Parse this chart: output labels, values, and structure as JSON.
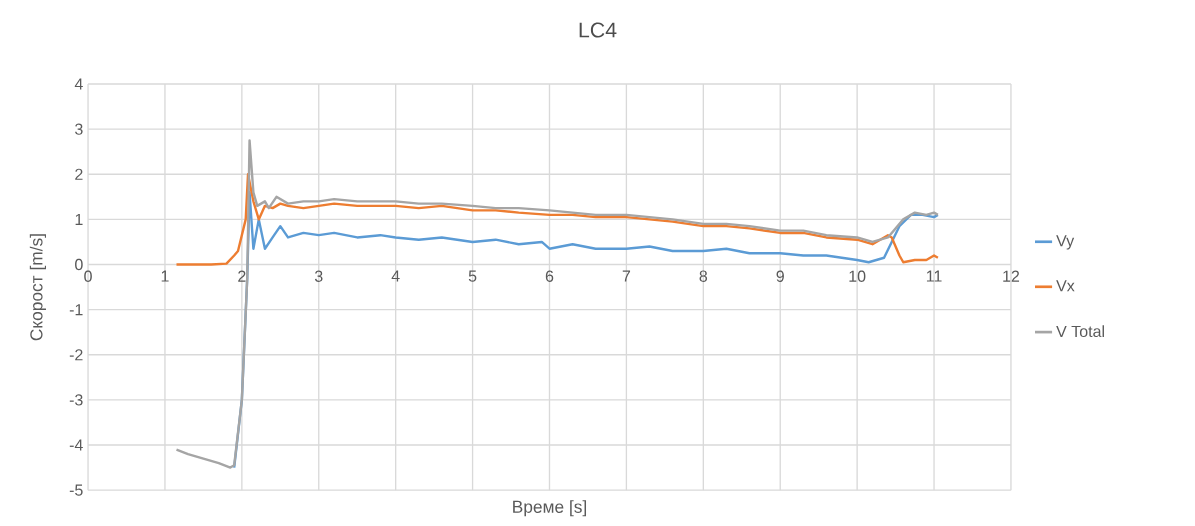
{
  "chart_data": {
    "type": "line",
    "title": "LC4",
    "xlabel": "Време [s]",
    "ylabel": "Скорост [m/s]",
    "xlim": [
      0,
      12
    ],
    "ylim": [
      -5,
      4
    ],
    "xticks": [
      0,
      1,
      2,
      3,
      4,
      5,
      6,
      7,
      8,
      9,
      10,
      11,
      12
    ],
    "yticks": [
      -5,
      -4,
      -3,
      -2,
      -1,
      0,
      1,
      2,
      3,
      4
    ],
    "grid": true,
    "legend": "right",
    "line_style": "solid",
    "marker": "none",
    "series": [
      {
        "name": "Vy",
        "color": "#5b9bd5",
        "x": [
          1.9,
          2.0,
          2.07,
          2.1,
          2.15,
          2.22,
          2.3,
          2.4,
          2.5,
          2.6,
          2.8,
          3.0,
          3.2,
          3.5,
          3.8,
          4.0,
          4.3,
          4.6,
          5.0,
          5.3,
          5.6,
          5.9,
          6.0,
          6.3,
          6.6,
          7.0,
          7.3,
          7.6,
          8.0,
          8.3,
          8.6,
          9.0,
          9.3,
          9.6,
          10.0,
          10.15,
          10.35,
          10.45,
          10.55,
          10.7,
          10.85,
          11.0,
          11.05
        ],
        "values": [
          -4.5,
          -3.0,
          -0.3,
          1.6,
          0.35,
          1.0,
          0.35,
          0.6,
          0.85,
          0.6,
          0.7,
          0.65,
          0.7,
          0.6,
          0.65,
          0.6,
          0.55,
          0.6,
          0.5,
          0.55,
          0.45,
          0.5,
          0.35,
          0.45,
          0.35,
          0.35,
          0.4,
          0.3,
          0.3,
          0.35,
          0.25,
          0.25,
          0.2,
          0.2,
          0.1,
          0.05,
          0.15,
          0.5,
          0.85,
          1.1,
          1.1,
          1.05,
          1.1
        ]
      },
      {
        "name": "Vx",
        "color": "#ed7d31",
        "x": [
          1.15,
          1.4,
          1.6,
          1.8,
          1.9,
          1.95,
          2.05,
          2.08,
          2.15,
          2.22,
          2.3,
          2.4,
          2.5,
          2.6,
          2.8,
          3.0,
          3.2,
          3.5,
          3.8,
          4.0,
          4.3,
          4.6,
          5.0,
          5.3,
          5.6,
          6.0,
          6.3,
          6.6,
          7.0,
          7.3,
          7.6,
          8.0,
          8.3,
          8.6,
          9.0,
          9.3,
          9.6,
          10.0,
          10.2,
          10.4,
          10.45,
          10.55,
          10.6,
          10.75,
          10.9,
          11.0,
          11.05
        ],
        "values": [
          0.0,
          0.0,
          0.0,
          0.02,
          0.2,
          0.3,
          1.0,
          2.0,
          1.4,
          1.0,
          1.3,
          1.25,
          1.35,
          1.3,
          1.25,
          1.3,
          1.35,
          1.3,
          1.3,
          1.3,
          1.25,
          1.3,
          1.2,
          1.2,
          1.15,
          1.1,
          1.1,
          1.05,
          1.05,
          1.0,
          0.95,
          0.85,
          0.85,
          0.8,
          0.7,
          0.7,
          0.6,
          0.55,
          0.45,
          0.65,
          0.6,
          0.2,
          0.05,
          0.1,
          0.1,
          0.2,
          0.15
        ]
      },
      {
        "name": "V Total",
        "color": "#a5a5a5",
        "x": [
          1.15,
          1.3,
          1.5,
          1.7,
          1.85,
          1.9,
          2.0,
          2.07,
          2.1,
          2.15,
          2.2,
          2.3,
          2.35,
          2.45,
          2.6,
          2.8,
          3.0,
          3.2,
          3.5,
          3.8,
          4.0,
          4.3,
          4.6,
          5.0,
          5.3,
          5.6,
          6.0,
          6.3,
          6.6,
          7.0,
          7.3,
          7.6,
          8.0,
          8.3,
          8.6,
          9.0,
          9.3,
          9.6,
          10.0,
          10.2,
          10.4,
          10.5,
          10.6,
          10.75,
          10.9,
          11.0,
          11.05
        ],
        "values": [
          -4.1,
          -4.2,
          -4.3,
          -4.4,
          -4.5,
          -4.45,
          -3.0,
          -0.3,
          2.75,
          1.6,
          1.3,
          1.4,
          1.25,
          1.5,
          1.35,
          1.4,
          1.4,
          1.45,
          1.4,
          1.4,
          1.4,
          1.35,
          1.35,
          1.3,
          1.25,
          1.25,
          1.2,
          1.15,
          1.1,
          1.1,
          1.05,
          1.0,
          0.9,
          0.9,
          0.85,
          0.75,
          0.75,
          0.65,
          0.6,
          0.5,
          0.6,
          0.8,
          1.0,
          1.15,
          1.1,
          1.15,
          1.1
        ]
      }
    ]
  }
}
